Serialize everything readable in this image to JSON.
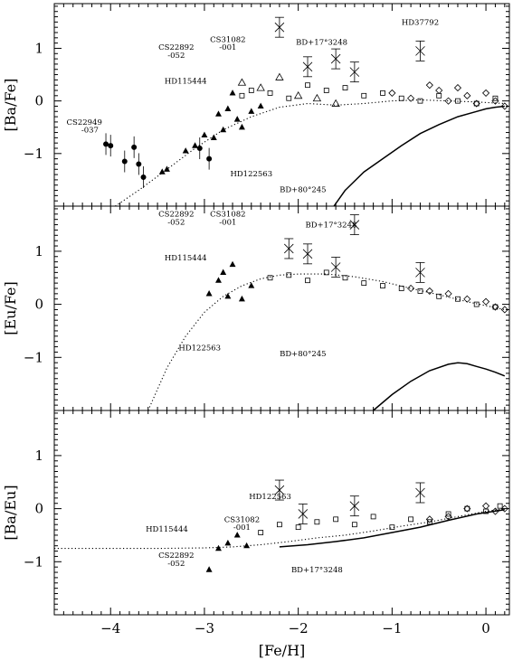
{
  "chart_data": [
    {
      "type": "scatter",
      "ylabel": "[Ba/Fe]",
      "xlim": [
        -4.6,
        0.25
      ],
      "ylim": [
        -2.0,
        1.85
      ],
      "yticks": [
        "-1",
        "0",
        "1"
      ],
      "annotations": [
        {
          "text": "HD37792",
          "x": -0.7,
          "y": 1.45
        },
        {
          "text": "CS31082",
          "x": -2.75,
          "y": 1.12
        },
        {
          "text": "-001",
          "x": -2.75,
          "y": 0.97
        },
        {
          "text": "CS22892",
          "x": -3.3,
          "y": 0.97
        },
        {
          "text": "-052",
          "x": -3.3,
          "y": 0.82
        },
        {
          "text": "BD+17°3248",
          "x": -1.75,
          "y": 1.07
        },
        {
          "text": "HD115444",
          "x": -3.2,
          "y": 0.33
        },
        {
          "text": "CS22949",
          "x": -4.28,
          "y": -0.45
        },
        {
          "text": "-037",
          "x": -4.22,
          "y": -0.6
        },
        {
          "text": "HD122563",
          "x": -2.5,
          "y": -1.43
        },
        {
          "text": "BD+80°245",
          "x": -1.95,
          "y": -1.73
        }
      ],
      "series": [
        {
          "marker": "filled-circle",
          "x": [
            -4.05,
            -4.0,
            -3.85,
            -3.75,
            -3.7,
            -3.65,
            -3.05,
            -2.95
          ],
          "y": [
            -0.82,
            -0.85,
            -1.15,
            -0.88,
            -1.2,
            -1.45,
            -0.9,
            -1.1
          ]
        },
        {
          "marker": "filled-triangle",
          "x": [
            -3.45,
            -3.4,
            -3.2,
            -3.1,
            -3.0,
            -2.9,
            -2.85,
            -2.8,
            -2.75,
            -2.7,
            -2.65,
            -2.6,
            -2.5,
            -2.4
          ],
          "y": [
            -1.35,
            -1.3,
            -0.95,
            -0.85,
            -0.65,
            -0.7,
            -0.25,
            -0.55,
            -0.15,
            0.15,
            -0.35,
            -0.5,
            -0.2,
            -0.1
          ]
        },
        {
          "marker": "open-square",
          "x": [
            -2.6,
            -2.5,
            -2.3,
            -2.1,
            -1.9,
            -1.7,
            -1.5,
            -1.3,
            -1.1,
            -0.9,
            -0.7,
            -0.5,
            -0.3,
            -0.1,
            0.1
          ],
          "y": [
            0.1,
            0.2,
            0.15,
            0.05,
            0.3,
            0.2,
            0.25,
            0.1,
            0.15,
            0.05,
            0.0,
            0.1,
            0.0,
            -0.05,
            0.05
          ]
        },
        {
          "marker": "open-diamond",
          "x": [
            -1.0,
            -0.8,
            -0.6,
            -0.5,
            -0.4,
            -0.3,
            -0.2,
            -0.1,
            0.0,
            0.1,
            0.2
          ],
          "y": [
            0.15,
            0.05,
            0.3,
            0.2,
            0.0,
            0.25,
            0.1,
            -0.05,
            0.15,
            0.0,
            -0.1
          ]
        },
        {
          "marker": "cross",
          "x": [
            -2.2,
            -1.9,
            -1.6,
            -1.4,
            -0.7
          ],
          "y": [
            1.4,
            0.65,
            0.8,
            0.55,
            0.95
          ]
        },
        {
          "marker": "open-triangle",
          "x": [
            -2.6,
            -2.4,
            -2.2,
            -2.0,
            -1.8,
            -1.6
          ],
          "y": [
            0.35,
            0.25,
            0.45,
            0.1,
            0.05,
            -0.05
          ]
        }
      ],
      "model_solid": {
        "x": [
          -1.62,
          -1.5,
          -1.3,
          -1.1,
          -0.9,
          -0.7,
          -0.5,
          -0.3,
          -0.1,
          0.0,
          0.1,
          0.2
        ],
        "y": [
          -2.0,
          -1.7,
          -1.35,
          -1.1,
          -0.85,
          -0.62,
          -0.45,
          -0.3,
          -0.2,
          -0.15,
          -0.12,
          -0.1
        ]
      },
      "model_dotted": {
        "x": [
          -3.95,
          -3.7,
          -3.4,
          -3.1,
          -2.8,
          -2.5,
          -2.2,
          -1.9,
          -1.6,
          -1.3,
          -1.0,
          -0.7,
          -0.4,
          -0.1,
          0.2
        ],
        "y": [
          -2.0,
          -1.7,
          -1.3,
          -0.9,
          -0.55,
          -0.3,
          -0.12,
          -0.05,
          -0.08,
          -0.05,
          0.0,
          0.02,
          0.0,
          -0.02,
          -0.05
        ]
      }
    },
    {
      "type": "scatter",
      "ylabel": "[Eu/Fe]",
      "xlim": [
        -4.6,
        0.25
      ],
      "ylim": [
        -2.0,
        1.85
      ],
      "yticks": [
        "-1",
        "0",
        "1"
      ],
      "annotations": [
        {
          "text": "CS22892",
          "x": -3.3,
          "y": 1.65
        },
        {
          "text": "-052",
          "x": -3.3,
          "y": 1.5
        },
        {
          "text": "CS31082",
          "x": -2.75,
          "y": 1.65
        },
        {
          "text": "-001",
          "x": -2.75,
          "y": 1.5
        },
        {
          "text": "BD+17°3248",
          "x": -1.65,
          "y": 1.45
        },
        {
          "text": "HD115444",
          "x": -3.2,
          "y": 0.83
        },
        {
          "text": "HD122563",
          "x": -3.05,
          "y": -0.87
        },
        {
          "text": "BD+80°245",
          "x": -1.95,
          "y": -0.98
        }
      ],
      "series": [
        {
          "marker": "filled-triangle",
          "x": [
            -2.95,
            -2.85,
            -2.8,
            -2.75,
            -2.7,
            -2.6,
            -2.5
          ],
          "y": [
            0.2,
            0.45,
            0.6,
            0.15,
            0.75,
            0.1,
            0.35
          ]
        },
        {
          "marker": "open-square",
          "x": [
            -2.3,
            -2.1,
            -1.9,
            -1.7,
            -1.5,
            -1.3,
            -1.1,
            -0.9,
            -0.7,
            -0.5,
            -0.3,
            -0.1,
            0.1
          ],
          "y": [
            0.5,
            0.55,
            0.45,
            0.6,
            0.5,
            0.4,
            0.35,
            0.3,
            0.25,
            0.15,
            0.1,
            0.0,
            -0.05
          ]
        },
        {
          "marker": "open-diamond",
          "x": [
            -0.8,
            -0.6,
            -0.4,
            -0.2,
            0.0,
            0.1,
            0.2
          ],
          "y": [
            0.3,
            0.25,
            0.2,
            0.1,
            0.05,
            -0.05,
            -0.1
          ]
        },
        {
          "marker": "cross",
          "x": [
            -2.1,
            -1.9,
            -1.6,
            -1.4,
            -0.7
          ],
          "y": [
            1.05,
            0.95,
            0.7,
            1.5,
            0.6
          ]
        }
      ],
      "model_solid": {
        "x": [
          -1.2,
          -1.0,
          -0.8,
          -0.6,
          -0.4,
          -0.3,
          -0.2,
          -0.1,
          0.0,
          0.1,
          0.2
        ],
        "y": [
          -2.0,
          -1.7,
          -1.45,
          -1.25,
          -1.13,
          -1.1,
          -1.12,
          -1.17,
          -1.22,
          -1.28,
          -1.35
        ]
      },
      "model_dotted": {
        "x": [
          -3.6,
          -3.4,
          -3.2,
          -3.0,
          -2.8,
          -2.6,
          -2.4,
          -2.2,
          -2.0,
          -1.7,
          -1.4,
          -1.1,
          -0.8,
          -0.5,
          -0.2,
          0.2
        ],
        "y": [
          -2.0,
          -1.2,
          -0.6,
          -0.15,
          0.15,
          0.35,
          0.48,
          0.55,
          0.57,
          0.57,
          0.52,
          0.43,
          0.3,
          0.18,
          0.05,
          -0.1
        ]
      }
    },
    {
      "type": "scatter",
      "ylabel": "[Ba/Eu]",
      "xlabel": "[Fe/H]",
      "xlim": [
        -4.6,
        0.25
      ],
      "ylim": [
        -2.0,
        1.85
      ],
      "yticks": [
        "-1",
        "0",
        "1"
      ],
      "xticks": [
        "-4",
        "-3",
        "-2",
        "-1",
        "0"
      ],
      "annotations": [
        {
          "text": "HD122563",
          "x": -2.3,
          "y": 0.18
        },
        {
          "text": "CS31082",
          "x": -2.6,
          "y": -0.25
        },
        {
          "text": "-001",
          "x": -2.6,
          "y": -0.4
        },
        {
          "text": "HD115444",
          "x": -3.4,
          "y": -0.43
        },
        {
          "text": "CS22892",
          "x": -3.3,
          "y": -0.93
        },
        {
          "text": "-052",
          "x": -3.3,
          "y": -1.08
        },
        {
          "text": "BD+17°3248",
          "x": -1.8,
          "y": -1.2
        }
      ],
      "series": [
        {
          "marker": "filled-triangle",
          "x": [
            -2.95,
            -2.85,
            -2.75,
            -2.65,
            -2.55
          ],
          "y": [
            -1.15,
            -0.75,
            -0.65,
            -0.5,
            -0.7
          ]
        },
        {
          "marker": "open-square",
          "x": [
            -2.4,
            -2.2,
            -2.0,
            -1.8,
            -1.6,
            -1.4,
            -1.2,
            -1.0,
            -0.8,
            -0.6,
            -0.4,
            -0.2,
            0.0,
            0.15
          ],
          "y": [
            -0.45,
            -0.3,
            -0.35,
            -0.25,
            -0.2,
            -0.3,
            -0.15,
            -0.35,
            -0.2,
            -0.25,
            -0.1,
            0.0,
            -0.05,
            0.05
          ]
        },
        {
          "marker": "open-diamond",
          "x": [
            -0.6,
            -0.4,
            -0.2,
            0.0,
            0.1,
            0.2
          ],
          "y": [
            -0.2,
            -0.15,
            0.0,
            0.05,
            -0.05,
            0.0
          ]
        },
        {
          "marker": "cross",
          "x": [
            -2.2,
            -1.95,
            -1.4,
            -0.7
          ],
          "y": [
            0.35,
            -0.1,
            0.05,
            0.3
          ]
        }
      ],
      "model_solid": {
        "x": [
          -2.2,
          -1.9,
          -1.6,
          -1.3,
          -1.0,
          -0.7,
          -0.4,
          -0.1,
          0.2
        ],
        "y": [
          -0.72,
          -0.68,
          -0.62,
          -0.55,
          -0.45,
          -0.35,
          -0.22,
          -0.1,
          -0.02
        ]
      },
      "model_dotted": {
        "x": [
          -4.6,
          -4.0,
          -3.5,
          -3.0,
          -2.7,
          -2.4,
          -2.1,
          -1.8,
          -1.5,
          -1.2,
          -0.9,
          -0.6,
          -0.3,
          0.0,
          0.2
        ],
        "y": [
          -0.75,
          -0.75,
          -0.75,
          -0.74,
          -0.72,
          -0.68,
          -0.62,
          -0.55,
          -0.5,
          -0.42,
          -0.33,
          -0.25,
          -0.15,
          -0.05,
          0.0
        ]
      }
    }
  ]
}
